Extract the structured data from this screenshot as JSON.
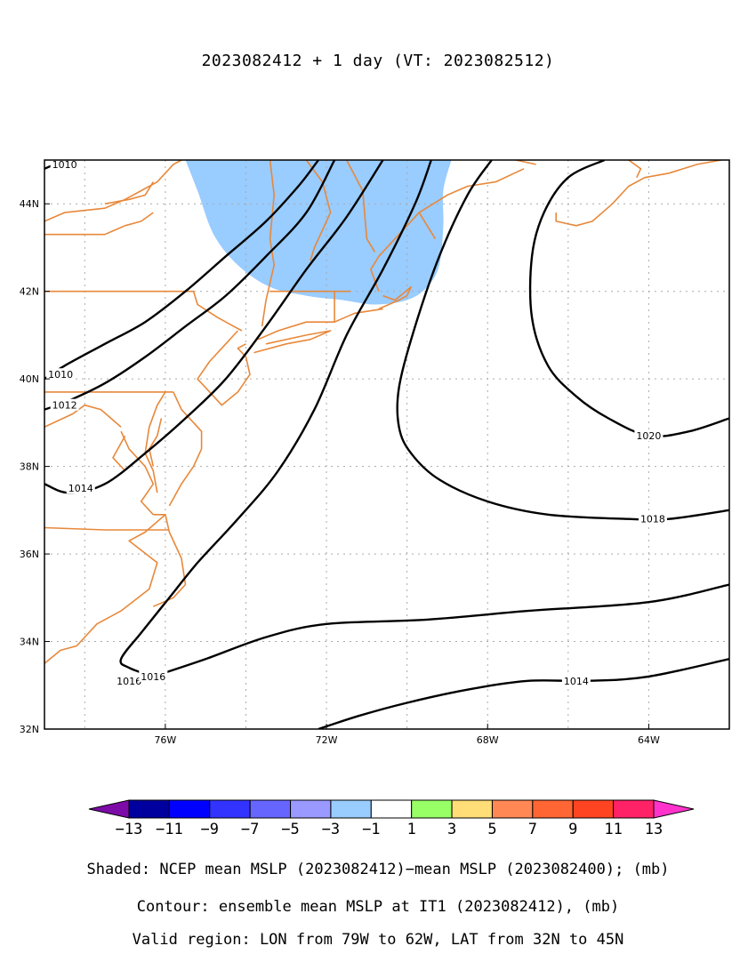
{
  "title": "2023082412 + 1 day (VT: 2023082512)",
  "footer": {
    "line1": "Shaded: NCEP mean MSLP (2023082412)−mean MSLP (2023082400); (mb)",
    "line2": "Contour: ensemble mean MSLP at IT1 (2023082412), (mb)",
    "line3": "Valid region: LON from 79W to 62W, LAT from 32N to 45N"
  },
  "map": {
    "lon_range": [
      -79,
      -62
    ],
    "lat_range": [
      32,
      45
    ],
    "grid": true,
    "x_ticks": [
      {
        "value": -76,
        "label": "76W"
      },
      {
        "value": -72,
        "label": "72W"
      },
      {
        "value": -68,
        "label": "68W"
      },
      {
        "value": -64,
        "label": "64W"
      }
    ],
    "y_ticks": [
      {
        "value": 32,
        "label": "32N"
      },
      {
        "value": 34,
        "label": "34N"
      },
      {
        "value": 36,
        "label": "36N"
      },
      {
        "value": 38,
        "label": "38N"
      },
      {
        "value": 40,
        "label": "40N"
      },
      {
        "value": 42,
        "label": "42N"
      },
      {
        "value": 44,
        "label": "44N"
      }
    ],
    "contour_color": "#000000",
    "coast_color": "#e8883a",
    "shade_color": "#99ccff"
  },
  "contours": [
    {
      "value": 1010,
      "label": "1010",
      "label_at": [
        -78.6,
        40.1
      ],
      "points": [
        [
          -79,
          40.0
        ],
        [
          -78.5,
          40.3
        ],
        [
          -77.5,
          40.8
        ],
        [
          -76.5,
          41.3
        ],
        [
          -75.5,
          42.0
        ],
        [
          -74.5,
          42.8
        ],
        [
          -73.5,
          43.6
        ],
        [
          -72.7,
          44.4
        ],
        [
          -72.2,
          45.0
        ]
      ]
    },
    {
      "value": 1010,
      "label": "1010",
      "label_at": [
        -78.5,
        44.9
      ],
      "points": [
        [
          -79,
          44.8
        ],
        [
          -78.5,
          45.0
        ]
      ]
    },
    {
      "value": 1012,
      "label": "1012",
      "label_at": [
        -78.5,
        39.4
      ],
      "points": [
        [
          -79,
          39.3
        ],
        [
          -78.4,
          39.5
        ],
        [
          -77.5,
          39.9
        ],
        [
          -76.5,
          40.5
        ],
        [
          -75.5,
          41.2
        ],
        [
          -74.5,
          41.9
        ],
        [
          -73.5,
          42.8
        ],
        [
          -72.5,
          43.8
        ],
        [
          -71.8,
          45.0
        ]
      ]
    },
    {
      "value": 1014,
      "label": "1014",
      "label_at": [
        -78.1,
        37.5
      ],
      "points": [
        [
          -79,
          37.6
        ],
        [
          -78.4,
          37.4
        ],
        [
          -77.5,
          37.6
        ],
        [
          -76.5,
          38.3
        ],
        [
          -75.5,
          39.1
        ],
        [
          -74.5,
          40.0
        ],
        [
          -73.5,
          41.2
        ],
        [
          -72.5,
          42.5
        ],
        [
          -71.5,
          43.7
        ],
        [
          -70.6,
          45.0
        ]
      ]
    },
    {
      "value": 1016,
      "label": "1016",
      "label_at": [
        -76.9,
        33.1
      ],
      "points": [
        [
          -76.3,
          33.2
        ],
        [
          -76.9,
          33.4
        ],
        [
          -77.1,
          33.6
        ],
        [
          -76.6,
          34.2
        ],
        [
          -75.9,
          35.0
        ],
        [
          -75.2,
          35.8
        ],
        [
          -74.2,
          36.8
        ],
        [
          -73.2,
          37.9
        ],
        [
          -72.3,
          39.3
        ],
        [
          -71.5,
          41.0
        ],
        [
          -70.6,
          42.5
        ],
        [
          -69.8,
          44.0
        ],
        [
          -69.4,
          45.0
        ]
      ]
    },
    {
      "value": 1016,
      "label": "1016",
      "label_at": [
        -76.3,
        33.2
      ],
      "points": [
        [
          -76.3,
          33.2
        ],
        [
          -75,
          33.6
        ],
        [
          -73.5,
          34.1
        ],
        [
          -72,
          34.4
        ],
        [
          -69.5,
          34.5
        ],
        [
          -67,
          34.7
        ],
        [
          -64,
          34.9
        ],
        [
          -62,
          35.3
        ]
      ]
    },
    {
      "value": 1018,
      "label": "1018",
      "label_at": [
        -63.9,
        36.8
      ],
      "points": [
        [
          -67.9,
          45.0
        ],
        [
          -68.5,
          44.2
        ],
        [
          -69.2,
          42.8
        ],
        [
          -69.8,
          41.2
        ],
        [
          -70.2,
          39.8
        ],
        [
          -70.2,
          38.9
        ],
        [
          -69.9,
          38.3
        ],
        [
          -69.2,
          37.7
        ],
        [
          -68,
          37.2
        ],
        [
          -66.5,
          36.9
        ],
        [
          -64.5,
          36.8
        ],
        [
          -63.5,
          36.8
        ],
        [
          -62,
          37.0
        ]
      ]
    },
    {
      "value": 1020,
      "label": "1020",
      "label_at": [
        -64.0,
        38.7
      ],
      "points": [
        [
          -65.1,
          45.0
        ],
        [
          -66.0,
          44.6
        ],
        [
          -66.6,
          43.8
        ],
        [
          -66.9,
          42.8
        ],
        [
          -66.9,
          41.4
        ],
        [
          -66.5,
          40.3
        ],
        [
          -65.8,
          39.6
        ],
        [
          -65,
          39.1
        ],
        [
          -64,
          38.7
        ],
        [
          -63,
          38.8
        ],
        [
          -62,
          39.1
        ]
      ]
    },
    {
      "value": 1014,
      "label": "1014",
      "label_at": [
        -65.8,
        33.1
      ],
      "points": [
        [
          -72.2,
          32.0
        ],
        [
          -71.2,
          32.3
        ],
        [
          -70,
          32.6
        ],
        [
          -68.5,
          32.9
        ],
        [
          -67,
          33.1
        ],
        [
          -65.5,
          33.1
        ],
        [
          -64,
          33.2
        ],
        [
          -62,
          33.6
        ]
      ]
    }
  ],
  "shaded_regions": [
    {
      "range": "-3 to -1",
      "points": [
        [
          -75.5,
          45.0
        ],
        [
          -75.2,
          44.3
        ],
        [
          -74.8,
          43.3
        ],
        [
          -74.2,
          42.6
        ],
        [
          -73.4,
          42.1
        ],
        [
          -72.5,
          41.9
        ],
        [
          -71.6,
          41.8
        ],
        [
          -70.8,
          41.7
        ],
        [
          -70.0,
          41.8
        ],
        [
          -69.5,
          42.1
        ],
        [
          -69.2,
          42.6
        ],
        [
          -69.1,
          43.5
        ],
        [
          -69.1,
          44.3
        ],
        [
          -68.9,
          45.0
        ]
      ]
    }
  ],
  "coastlines": [
    [
      [
        -79,
        43.6
      ],
      [
        -78.5,
        43.8
      ],
      [
        -77.5,
        43.9
      ],
      [
        -77.0,
        44.1
      ],
      [
        -76.6,
        44.3
      ],
      [
        -76.2,
        44.5
      ],
      [
        -75.8,
        44.9
      ],
      [
        -75.6,
        45.0
      ]
    ],
    [
      [
        -79,
        43.3
      ],
      [
        -78.5,
        43.3
      ],
      [
        -77.5,
        43.3
      ],
      [
        -77.0,
        43.5
      ],
      [
        -76.6,
        43.6
      ],
      [
        -76.3,
        43.8
      ]
    ],
    [
      [
        -77.5,
        44.0
      ],
      [
        -76.9,
        44.1
      ],
      [
        -76.5,
        44.2
      ],
      [
        -76.3,
        44.5
      ]
    ],
    [
      [
        -79,
        42.0
      ],
      [
        -77,
        42.0
      ],
      [
        -75.3,
        42.0
      ],
      [
        -75.2,
        41.7
      ],
      [
        -74.7,
        41.4
      ],
      [
        -74.1,
        41.1
      ]
    ],
    [
      [
        -79,
        39.7
      ],
      [
        -77.5,
        39.7
      ],
      [
        -75.8,
        39.7
      ]
    ],
    [
      [
        -74.2,
        41.1
      ],
      [
        -74.5,
        40.8
      ],
      [
        -74.9,
        40.4
      ],
      [
        -75.2,
        40.0
      ],
      [
        -74.6,
        39.4
      ],
      [
        -74.2,
        39.7
      ],
      [
        -73.9,
        40.1
      ],
      [
        -74.0,
        40.5
      ],
      [
        -74.2,
        40.7
      ],
      [
        -74.0,
        40.8
      ]
    ],
    [
      [
        -73.8,
        40.6
      ],
      [
        -73.0,
        40.8
      ],
      [
        -72.4,
        40.9
      ],
      [
        -71.9,
        41.1
      ],
      [
        -72.5,
        41.0
      ],
      [
        -73.5,
        40.8
      ]
    ],
    [
      [
        -73.7,
        40.9
      ],
      [
        -73.2,
        41.1
      ],
      [
        -72.5,
        41.3
      ],
      [
        -71.8,
        41.3
      ],
      [
        -71.3,
        41.5
      ],
      [
        -70.6,
        41.6
      ]
    ],
    [
      [
        -70.7,
        41.6
      ],
      [
        -70.2,
        41.8
      ],
      [
        -70.0,
        41.9
      ],
      [
        -69.9,
        42.1
      ],
      [
        -70.3,
        41.8
      ],
      [
        -70.6,
        41.9
      ]
    ],
    [
      [
        -70.7,
        42.0
      ],
      [
        -70.9,
        42.5
      ],
      [
        -70.7,
        42.8
      ],
      [
        -70.3,
        43.2
      ],
      [
        -69.7,
        43.8
      ],
      [
        -69.0,
        44.2
      ],
      [
        -68.5,
        44.4
      ],
      [
        -67.8,
        44.5
      ],
      [
        -67.1,
        44.8
      ]
    ],
    [
      [
        -73.4,
        45.0
      ],
      [
        -73.3,
        44.2
      ],
      [
        -73.4,
        43.2
      ],
      [
        -73.3,
        42.6
      ],
      [
        -73.5,
        41.8
      ],
      [
        -73.6,
        41.2
      ]
    ],
    [
      [
        -71.5,
        45.0
      ],
      [
        -71.1,
        44.3
      ],
      [
        -71.0,
        43.2
      ],
      [
        -70.8,
        42.9
      ]
    ],
    [
      [
        -72.5,
        45.0
      ],
      [
        -72.1,
        44.5
      ],
      [
        -71.9,
        43.8
      ],
      [
        -72.3,
        43.0
      ],
      [
        -72.4,
        42.7
      ]
    ],
    [
      [
        -73.4,
        42.0
      ],
      [
        -71.8,
        42.0
      ],
      [
        -71.4,
        42.0
      ]
    ],
    [
      [
        -71.8,
        42.0
      ],
      [
        -71.8,
        41.3
      ]
    ],
    [
      [
        -76.0,
        39.7
      ],
      [
        -76.2,
        39.4
      ],
      [
        -76.4,
        38.9
      ],
      [
        -76.5,
        38.3
      ],
      [
        -76.3,
        37.9
      ],
      [
        -76.2,
        37.4
      ]
    ],
    [
      [
        -75.8,
        39.7
      ],
      [
        -75.6,
        39.3
      ],
      [
        -75.1,
        38.8
      ],
      [
        -75.1,
        38.4
      ],
      [
        -75.3,
        38.0
      ],
      [
        -75.6,
        37.6
      ],
      [
        -75.9,
        37.1
      ]
    ],
    [
      [
        -76.1,
        39.1
      ],
      [
        -76.2,
        38.7
      ],
      [
        -76.4,
        38.4
      ],
      [
        -76.3,
        38.0
      ]
    ],
    [
      [
        -77.1,
        38.8
      ],
      [
        -76.9,
        38.4
      ],
      [
        -76.5,
        38.0
      ],
      [
        -76.3,
        37.6
      ],
      [
        -76.6,
        37.2
      ],
      [
        -76.3,
        36.9
      ]
    ],
    [
      [
        -76.3,
        36.9
      ],
      [
        -76.0,
        36.9
      ],
      [
        -75.9,
        36.5
      ],
      [
        -75.6,
        35.9
      ],
      [
        -75.5,
        35.3
      ]
    ],
    [
      [
        -76.0,
        36.9
      ],
      [
        -76.5,
        36.5
      ],
      [
        -76.9,
        36.3
      ],
      [
        -76.2,
        35.8
      ],
      [
        -76.4,
        35.2
      ],
      [
        -77.1,
        34.7
      ],
      [
        -77.7,
        34.4
      ],
      [
        -78.2,
        33.9
      ],
      [
        -78.6,
        33.8
      ],
      [
        -79,
        33.5
      ]
    ],
    [
      [
        -79,
        36.6
      ],
      [
        -77.5,
        36.55
      ],
      [
        -75.9,
        36.55
      ]
    ],
    [
      [
        -79,
        38.9
      ],
      [
        -78.3,
        39.2
      ],
      [
        -78.0,
        39.4
      ],
      [
        -77.6,
        39.3
      ],
      [
        -77.1,
        38.9
      ]
    ],
    [
      [
        -77.0,
        38.7
      ],
      [
        -77.3,
        38.2
      ],
      [
        -77.0,
        37.9
      ]
    ],
    [
      [
        -75.5,
        35.3
      ],
      [
        -75.8,
        35.0
      ],
      [
        -76.3,
        34.8
      ]
    ],
    [
      [
        -66.3,
        43.8
      ],
      [
        -66.3,
        43.6
      ],
      [
        -65.8,
        43.5
      ],
      [
        -65.4,
        43.6
      ],
      [
        -64.9,
        44.0
      ],
      [
        -64.5,
        44.4
      ],
      [
        -64.1,
        44.6
      ],
      [
        -63.5,
        44.7
      ],
      [
        -62.8,
        44.9
      ],
      [
        -62.2,
        45.0
      ]
    ],
    [
      [
        -64.5,
        45.0
      ],
      [
        -64.2,
        44.8
      ],
      [
        -64.3,
        44.6
      ]
    ],
    [
      [
        -69.7,
        43.8
      ],
      [
        -69.5,
        43.5
      ],
      [
        -69.3,
        43.2
      ]
    ],
    [
      [
        -67.3,
        45.0
      ],
      [
        -66.8,
        44.9
      ]
    ]
  ],
  "colorbar": {
    "colors": [
      "#7c0ba8",
      "#00009e",
      "#0000ff",
      "#3333ff",
      "#6666ff",
      "#9999ff",
      "#99ccff",
      "#ffffff",
      "#99ff66",
      "#ffdd77",
      "#ff8855",
      "#ff6633",
      "#ff4422",
      "#ff2266",
      "#ff33cc"
    ],
    "labels": [
      "−13",
      "−11",
      "−9",
      "−7",
      "−5",
      "−3",
      "−1",
      "1",
      "3",
      "5",
      "7",
      "9",
      "11",
      "13"
    ]
  }
}
